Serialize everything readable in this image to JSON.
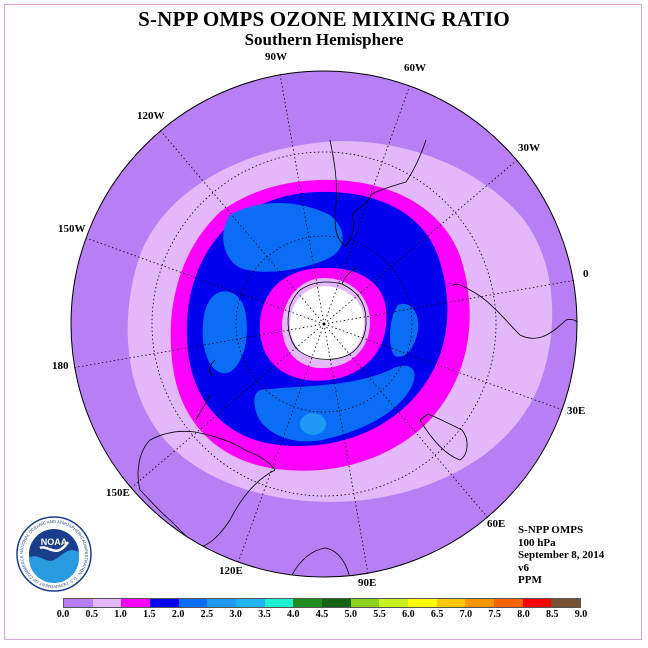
{
  "header": {
    "title": "S-NPP OMPS OZONE MIXING RATIO",
    "subtitle": "Southern Hemisphere"
  },
  "longitude_labels": [
    {
      "text": "90W",
      "name": "lon-label-90w"
    },
    {
      "text": "60W",
      "name": "lon-label-60w"
    },
    {
      "text": "30W",
      "name": "lon-label-30w"
    },
    {
      "text": "0",
      "name": "lon-label-0"
    },
    {
      "text": "30E",
      "name": "lon-label-30e"
    },
    {
      "text": "60E",
      "name": "lon-label-60e"
    },
    {
      "text": "90E",
      "name": "lon-label-90e"
    },
    {
      "text": "120E",
      "name": "lon-label-120e"
    },
    {
      "text": "150E",
      "name": "lon-label-150e"
    },
    {
      "text": "180",
      "name": "lon-label-180"
    },
    {
      "text": "150W",
      "name": "lon-label-150w"
    },
    {
      "text": "120W",
      "name": "lon-label-120w"
    }
  ],
  "info": {
    "instrument": "S-NPP OMPS",
    "level": "100 hPa",
    "date": "September 8, 2014",
    "version": "v6",
    "units": "PPM"
  },
  "logo": {
    "center_text": "NOAA",
    "ring_text": "NATIONAL OCEANIC AND ATMOSPHERIC ADMINISTRATION · U.S. DEPARTMENT OF COMMERCE"
  },
  "colorbar": {
    "colors": [
      "#b87ff5",
      "#e2b8fa",
      "#ff00ff",
      "#0000ee",
      "#0a6df5",
      "#1e9af5",
      "#1eb4f0",
      "#1ef0d2",
      "#1e8c1e",
      "#146414",
      "#8cd21e",
      "#c8f01e",
      "#ffff00",
      "#ffc800",
      "#ff9600",
      "#ff6400",
      "#ff0000",
      "#785032"
    ],
    "ticks": [
      "0.0",
      "0.5",
      "1.0",
      "1.5",
      "2.0",
      "2.5",
      "3.0",
      "3.5",
      "4.0",
      "4.5",
      "5.0",
      "5.5",
      "6.0",
      "6.5",
      "7.0",
      "7.5",
      "8.0",
      "8.5",
      "9.0"
    ]
  },
  "map_style": {
    "projection": "south-polar-stereographic",
    "coastline_color": "#000000",
    "graticule": "dotted",
    "no_data_color": "#ffffff"
  }
}
